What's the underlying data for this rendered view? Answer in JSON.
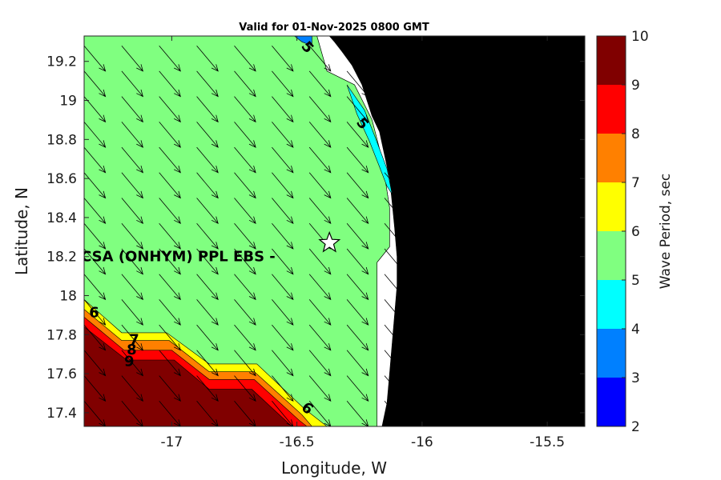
{
  "chart_data": {
    "type": "heatmap",
    "subtype": "filled contour map with vector arrows",
    "title": "Valid for 01-Nov-2025 0800 GMT",
    "xlabel": "Longitude, W",
    "ylabel": "Latitude, N",
    "xlim": [
      -17.35,
      -15.35
    ],
    "ylim": [
      17.33,
      19.33
    ],
    "xticks": [
      -17,
      -16.5,
      -16,
      -15.5
    ],
    "xtick_labels": [
      "-17",
      "-16.5",
      "-16",
      "-15.5"
    ],
    "yticks": [
      17.4,
      17.6,
      17.8,
      18,
      18.2,
      18.4,
      18.6,
      18.8,
      19,
      19.2
    ],
    "ytick_labels": [
      "17.4",
      "17.6",
      "17.8",
      "18",
      "18.2",
      "18.4",
      "18.6",
      "18.8",
      "19",
      "19.2"
    ],
    "colorbar": {
      "label": "Wave Period, sec",
      "levels": [
        2,
        3,
        4,
        5,
        6,
        7,
        8,
        9,
        10
      ],
      "level_labels": [
        "2",
        "3",
        "4",
        "5",
        "6",
        "7",
        "8",
        "9",
        "10"
      ],
      "colors": [
        "#0000ff",
        "#0080ff",
        "#00ffff",
        "#80ff80",
        "#ffff00",
        "#ff8000",
        "#ff0000",
        "#800000"
      ]
    },
    "regions": [
      {
        "name": "land",
        "color": "#000000",
        "points": [
          [
            -16.37,
            19.33
          ],
          [
            -16.35,
            19.3
          ],
          [
            -16.32,
            19.25
          ],
          [
            -16.28,
            19.18
          ],
          [
            -16.24,
            19.08
          ],
          [
            -16.22,
            19.0
          ],
          [
            -16.2,
            18.92
          ],
          [
            -16.17,
            18.84
          ],
          [
            -16.15,
            18.72
          ],
          [
            -16.13,
            18.6
          ],
          [
            -16.12,
            18.48
          ],
          [
            -16.11,
            18.35
          ],
          [
            -16.1,
            18.2
          ],
          [
            -16.1,
            18.05
          ],
          [
            -16.11,
            17.9
          ],
          [
            -16.12,
            17.75
          ],
          [
            -16.13,
            17.6
          ],
          [
            -16.14,
            17.45
          ],
          [
            -16.16,
            17.33
          ],
          [
            -15.35,
            17.33
          ],
          [
            -15.35,
            19.33
          ]
        ]
      },
      {
        "name": "no-data near shore",
        "color": "#ffffff",
        "points": [
          [
            -16.42,
            19.33
          ],
          [
            -16.37,
            19.33
          ],
          [
            -16.35,
            19.3
          ],
          [
            -16.32,
            19.25
          ],
          [
            -16.28,
            19.18
          ],
          [
            -16.24,
            19.08
          ],
          [
            -16.22,
            19.0
          ],
          [
            -16.2,
            18.92
          ],
          [
            -16.17,
            18.84
          ],
          [
            -16.15,
            18.72
          ],
          [
            -16.13,
            18.6
          ],
          [
            -16.12,
            18.48
          ],
          [
            -16.11,
            18.35
          ],
          [
            -16.1,
            18.2
          ],
          [
            -16.1,
            18.05
          ],
          [
            -16.11,
            17.9
          ],
          [
            -16.12,
            17.75
          ],
          [
            -16.13,
            17.6
          ],
          [
            -16.14,
            17.45
          ],
          [
            -16.16,
            17.33
          ],
          [
            -16.18,
            17.33
          ],
          [
            -16.18,
            18.17
          ],
          [
            -16.13,
            18.25
          ],
          [
            -16.13,
            18.45
          ],
          [
            -16.16,
            18.7
          ],
          [
            -16.2,
            18.9
          ],
          [
            -16.27,
            19.08
          ],
          [
            -16.38,
            19.15
          ]
        ]
      },
      {
        "name": "wave period 5-6",
        "color": "#80ff80",
        "points": [
          [
            -17.35,
            19.33
          ],
          [
            -16.42,
            19.33
          ],
          [
            -16.38,
            19.15
          ],
          [
            -16.27,
            19.08
          ],
          [
            -16.2,
            18.9
          ],
          [
            -16.16,
            18.7
          ],
          [
            -16.13,
            18.45
          ],
          [
            -16.13,
            18.25
          ],
          [
            -16.18,
            18.17
          ],
          [
            -16.18,
            17.33
          ],
          [
            -17.35,
            17.33
          ]
        ]
      },
      {
        "name": "wave period 4-5",
        "color": "#00ffff",
        "points": [
          [
            -16.3,
            19.08
          ],
          [
            -16.23,
            18.95
          ],
          [
            -16.19,
            18.82
          ],
          [
            -16.14,
            18.65
          ],
          [
            -16.12,
            18.52
          ],
          [
            -16.14,
            18.56
          ],
          [
            -16.17,
            18.66
          ],
          [
            -16.21,
            18.79
          ],
          [
            -16.26,
            18.93
          ]
        ]
      },
      {
        "name": "wave period 3-4",
        "color": "#0080ff",
        "points": [
          [
            -16.51,
            19.33
          ],
          [
            -16.44,
            19.33
          ],
          [
            -16.44,
            19.28
          ],
          [
            -16.48,
            19.3
          ]
        ]
      },
      {
        "name": "wave period 6-7",
        "color": "#ffff00",
        "points": [
          [
            -17.35,
            17.98
          ],
          [
            -17.2,
            17.81
          ],
          [
            -17.02,
            17.81
          ],
          [
            -16.85,
            17.65
          ],
          [
            -16.66,
            17.65
          ],
          [
            -16.47,
            17.42
          ],
          [
            -16.38,
            17.33
          ],
          [
            -17.35,
            17.33
          ]
        ]
      },
      {
        "name": "wave period 7-8",
        "color": "#ff8000",
        "points": [
          [
            -17.35,
            17.93
          ],
          [
            -17.2,
            17.77
          ],
          [
            -17.01,
            17.77
          ],
          [
            -16.85,
            17.61
          ],
          [
            -16.67,
            17.61
          ],
          [
            -16.48,
            17.39
          ],
          [
            -16.44,
            17.33
          ],
          [
            -17.35,
            17.33
          ]
        ]
      },
      {
        "name": "wave period 8-9",
        "color": "#ff0000",
        "points": [
          [
            -17.35,
            17.89
          ],
          [
            -17.19,
            17.72
          ],
          [
            -17.0,
            17.72
          ],
          [
            -16.85,
            17.57
          ],
          [
            -16.67,
            17.57
          ],
          [
            -16.49,
            17.36
          ],
          [
            -16.46,
            17.33
          ],
          [
            -17.35,
            17.33
          ]
        ]
      },
      {
        "name": "wave period 9-10",
        "color": "#800000",
        "points": [
          [
            -17.35,
            17.84
          ],
          [
            -17.18,
            17.67
          ],
          [
            -16.99,
            17.67
          ],
          [
            -16.85,
            17.52
          ],
          [
            -16.68,
            17.52
          ],
          [
            -16.52,
            17.33
          ],
          [
            -17.35,
            17.33
          ]
        ]
      }
    ],
    "contour_labels": [
      {
        "text": "5",
        "lon": -16.46,
        "lat": 19.27,
        "rotation": 50
      },
      {
        "text": "5",
        "lon": -16.24,
        "lat": 18.88,
        "rotation": 50
      },
      {
        "text": "6",
        "lon": -17.31,
        "lat": 17.91,
        "rotation": 0
      },
      {
        "text": "7",
        "lon": -17.15,
        "lat": 17.77,
        "rotation": 0
      },
      {
        "text": "8",
        "lon": -17.16,
        "lat": 17.72,
        "rotation": 0
      },
      {
        "text": "9",
        "lon": -17.17,
        "lat": 17.66,
        "rotation": 0
      },
      {
        "text": "6",
        "lon": -16.46,
        "lat": 17.42,
        "rotation": 40
      }
    ],
    "site": {
      "label": "CSA (ONHYM) PPL EBS  -",
      "lon": -16.37,
      "lat": 18.27,
      "label_lon": -17.02,
      "label_lat": 18.2
    },
    "vectors": {
      "field": "wave direction",
      "grid_lon_start": -17.35,
      "grid_lon_end": -16.12,
      "grid_lon_step": 0.15,
      "grid_lat_start": 19.28,
      "grid_lat_end": 17.33,
      "grid_lat_step": -0.13,
      "d_lon": 0.085,
      "d_lat": -0.13
    }
  }
}
